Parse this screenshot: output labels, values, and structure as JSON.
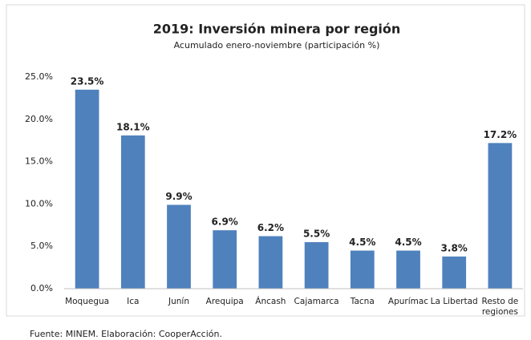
{
  "chart_data": {
    "type": "bar",
    "title": "2019: Inversión minera por región",
    "subtitle": "Acumulado enero-noviembre (participación %)",
    "categories": [
      "Moquegua",
      "Ica",
      "Junín",
      "Arequipa",
      "Áncash",
      "Cajamarca",
      "Tacna",
      "Apurímac",
      "La Libertad",
      "Resto de regiones"
    ],
    "values": [
      23.5,
      18.1,
      9.9,
      6.9,
      6.2,
      5.5,
      4.5,
      4.5,
      3.8,
      17.2
    ],
    "value_labels": [
      "23.5%",
      "18.1%",
      "9.9%",
      "6.9%",
      "6.2%",
      "5.5%",
      "4.5%",
      "4.5%",
      "3.8%",
      "17.2%"
    ],
    "color": "#4f81bd",
    "ylim": [
      0,
      25
    ],
    "yticks": [
      {
        "value": 0,
        "label": "0.0%"
      },
      {
        "value": 5,
        "label": "5.0%"
      },
      {
        "value": 10,
        "label": "10.0%"
      },
      {
        "value": 15,
        "label": "15.0%"
      },
      {
        "value": 20,
        "label": "20.0%"
      },
      {
        "value": 25,
        "label": "25.0%"
      }
    ],
    "grid": false,
    "source": "Fuente: MINEM. Elaboración: CooperAcción."
  }
}
